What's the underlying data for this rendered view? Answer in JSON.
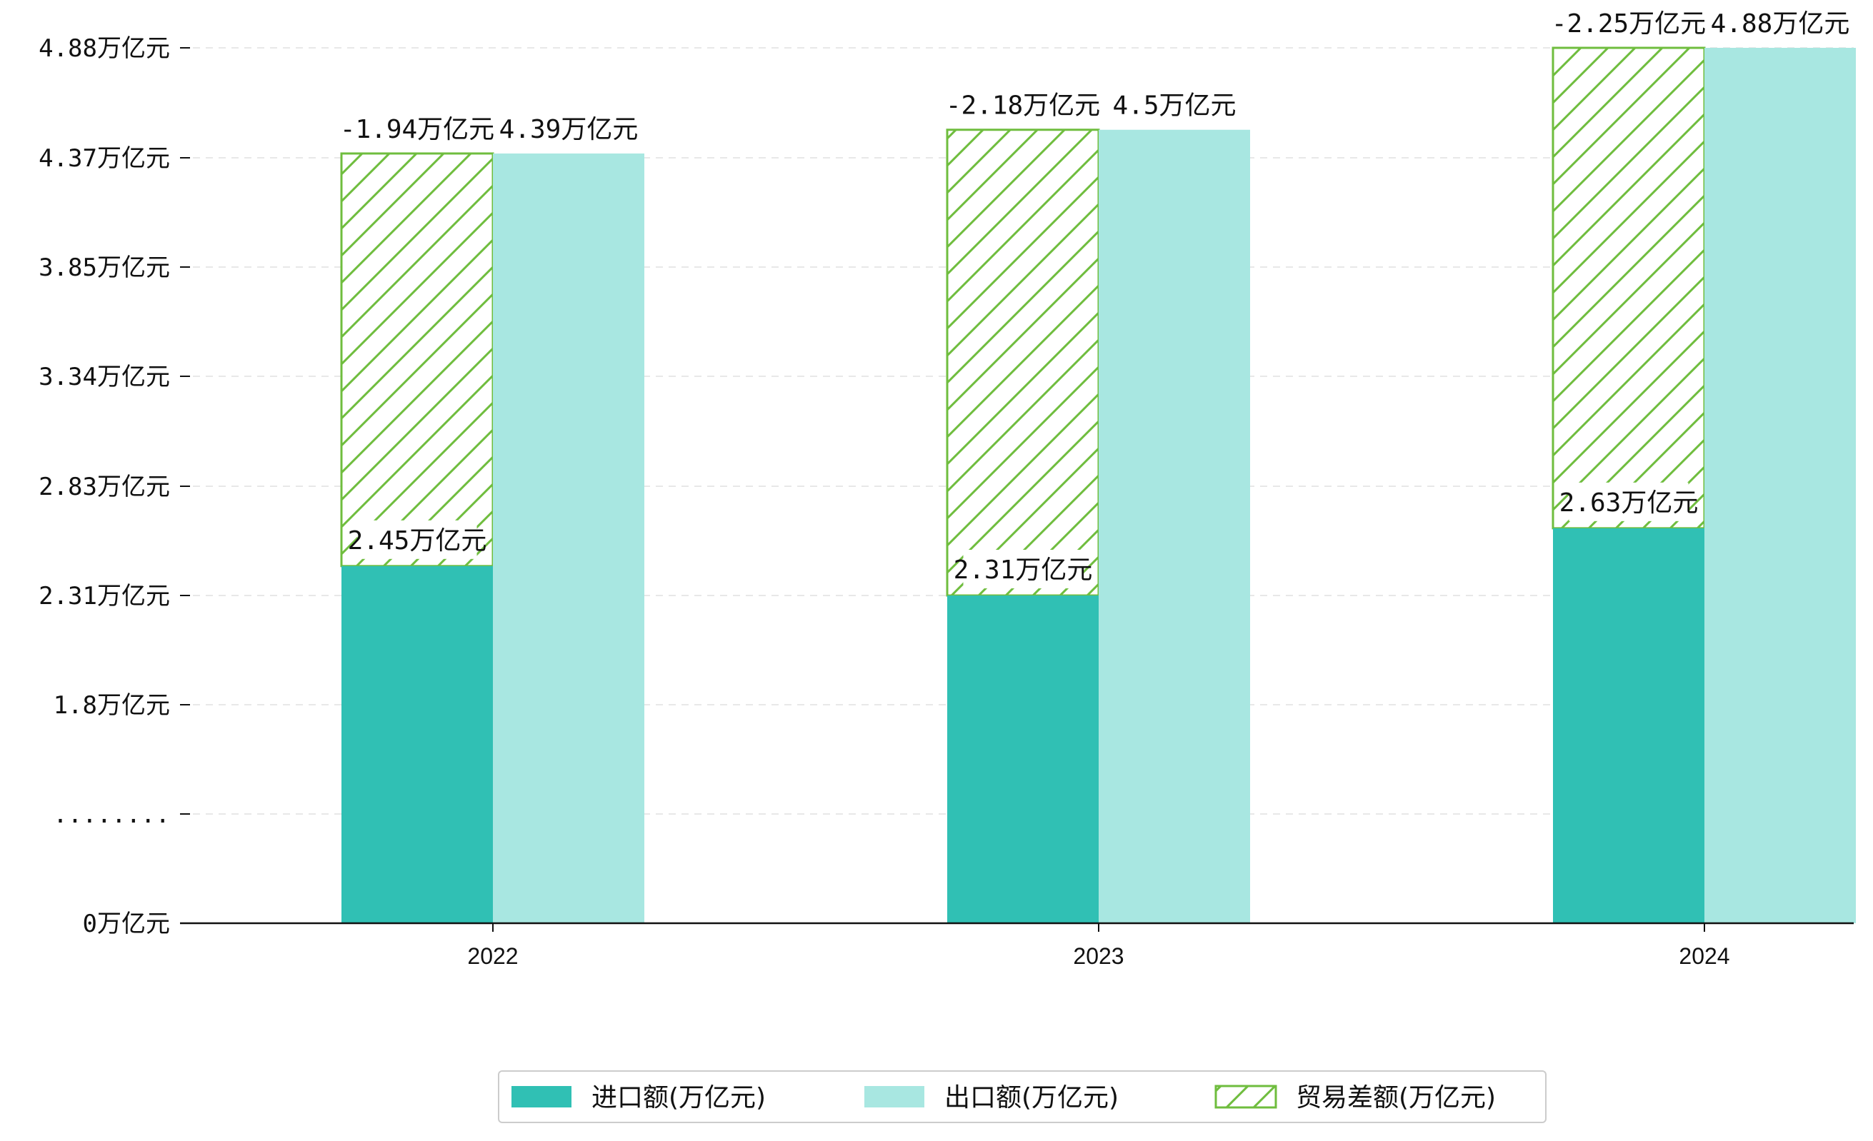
{
  "chart_data": {
    "type": "bar",
    "categories": [
      "2022",
      "2023",
      "2024"
    ],
    "series": [
      {
        "name": "进口额(万亿元)",
        "values": [
          2.45,
          2.31,
          2.63
        ],
        "color": "#30c0b4",
        "labels": [
          "2.45万亿元",
          "2.31万亿元",
          "2.63万亿元"
        ]
      },
      {
        "name": "出口额(万亿元)",
        "values": [
          4.39,
          4.5,
          4.88
        ],
        "color": "#a8e7e1",
        "labels": [
          "4.39万亿元",
          "4.5万亿元",
          "4.88万亿元"
        ]
      },
      {
        "name": "贸易差额(万亿元)",
        "values": [
          -1.94,
          -2.18,
          -2.25
        ],
        "color": "#6fbd3e",
        "pattern": "hatch",
        "labels": [
          "-1.94万亿元",
          "-2.18万亿元",
          "-2.25万亿元"
        ]
      }
    ],
    "y_ticks": [
      {
        "value": 0,
        "label": "0万亿元"
      },
      {
        "value": 0.5,
        "label": "........"
      },
      {
        "value": 1.8,
        "label": "1.8万亿元"
      },
      {
        "value": 2.31,
        "label": "2.31万亿元"
      },
      {
        "value": 2.83,
        "label": "2.83万亿元"
      },
      {
        "value": 3.34,
        "label": "3.34万亿元"
      },
      {
        "value": 3.85,
        "label": "3.85万亿元"
      },
      {
        "value": 4.37,
        "label": "4.37万亿元"
      },
      {
        "value": 4.88,
        "label": "4.88万亿元"
      }
    ],
    "axis_break": true,
    "grid": true,
    "legend_position": "bottom-center"
  }
}
